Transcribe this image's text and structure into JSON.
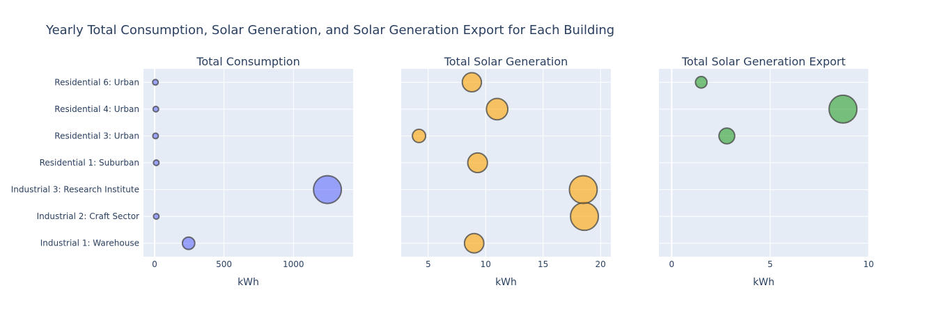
{
  "title": "Yearly Total Consumption, Solar Generation, and Solar Generation Export for Each Building",
  "colors": {
    "plot_bg": "#e5ecf6",
    "grid": "#ffffff",
    "text": "#2a3f5f",
    "marker_line": "#444444"
  },
  "chart_data": [
    {
      "type": "scatter",
      "title": "Total Consumption",
      "xlabel": "kWh",
      "xlim": [
        -80,
        1430
      ],
      "xticks": [
        0,
        500,
        1000
      ],
      "marker_color": "#636efa",
      "categories": [
        "Industrial 1: Warehouse",
        "Industrial 2: Craft Sector",
        "Industrial 3: Research Institute",
        "Residential 1: Suburban",
        "Residential 3: Urban",
        "Residential 4: Urban",
        "Residential 6: Urban"
      ],
      "points": [
        {
          "x": 245,
          "y": "Industrial 1: Warehouse",
          "size": 245
        },
        {
          "x": 12,
          "y": "Industrial 2: Craft Sector",
          "size": 12
        },
        {
          "x": 1245,
          "y": "Industrial 3: Research Institute",
          "size": 1245
        },
        {
          "x": 12,
          "y": "Residential 1: Suburban",
          "size": 12
        },
        {
          "x": 7,
          "y": "Residential 3: Urban",
          "size": 7
        },
        {
          "x": 9,
          "y": "Residential 4: Urban",
          "size": 9
        },
        {
          "x": 6,
          "y": "Residential 6: Urban",
          "size": 6
        }
      ]
    },
    {
      "type": "scatter",
      "title": "Total Solar Generation",
      "xlabel": "kWh",
      "xlim": [
        2.65,
        20.9
      ],
      "xticks": [
        5,
        10,
        15,
        20
      ],
      "marker_color": "#ffa500",
      "points": [
        {
          "x": 9.0,
          "y": 0.5,
          "size": 9.0
        },
        {
          "x": 18.6,
          "y": 1.5,
          "size": 18.6
        },
        {
          "x": 18.5,
          "y": 2.5,
          "size": 18.5
        },
        {
          "x": 9.3,
          "y": 3.5,
          "size": 9.3
        },
        {
          "x": 4.2,
          "y": 4.5,
          "size": 4.2
        },
        {
          "x": 11.0,
          "y": 5.5,
          "size": 11.0
        },
        {
          "x": 8.8,
          "y": 6.5,
          "size": 8.8
        }
      ]
    },
    {
      "type": "scatter",
      "title": "Total Solar Generation Export",
      "xlabel": "kWh",
      "xlim": [
        -0.65,
        10
      ],
      "xticks": [
        0,
        5,
        10
      ],
      "marker_color": "#2ca02c",
      "points": [
        {
          "x": 2.8,
          "y": 4.5,
          "size": 2.8
        },
        {
          "x": 8.7,
          "y": 5.5,
          "size": 8.7
        },
        {
          "x": 1.5,
          "y": 6.5,
          "size": 1.5
        }
      ]
    }
  ]
}
